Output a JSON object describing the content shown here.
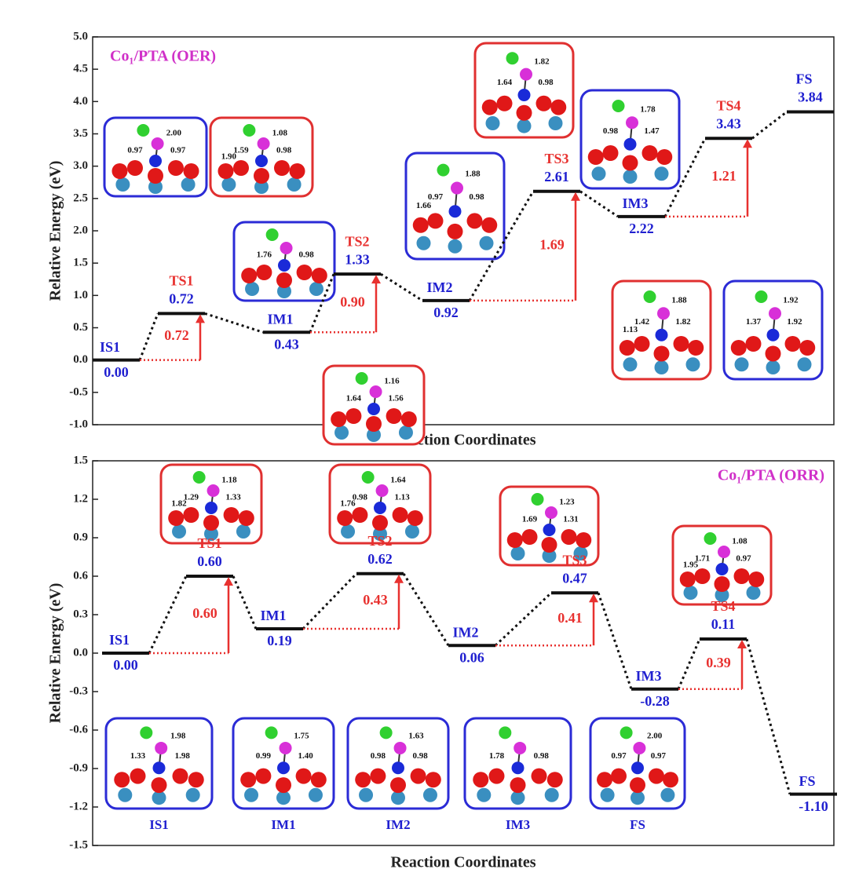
{
  "chart_data": [
    {
      "type": "energy",
      "title": "Co₁/PTA (OER)",
      "ylabel": "Relative Energy (eV)",
      "xlabel": "Reaction Coordinates",
      "categories": [
        "IS1",
        "TS1",
        "IM1",
        "TS2",
        "IM2",
        "TS3",
        "IM3",
        "TS4",
        "FS"
      ],
      "values": [
        0,
        0.72,
        0.43,
        1.33,
        0.92,
        2.61,
        2.22,
        3.43,
        3.84
      ],
      "value_labels": [
        "0.00",
        "0.72",
        "0.43",
        "1.33",
        "0.92",
        "2.61",
        "2.22",
        "3.43",
        "3.84"
      ],
      "barriers": [
        null,
        0.72,
        null,
        0.9,
        null,
        1.69,
        null,
        1.21,
        null
      ],
      "barrier_labels": [
        null,
        "0.72",
        null,
        "0.90",
        null,
        "1.69",
        null,
        "1.21",
        null
      ],
      "ylim": [
        -1,
        5
      ],
      "yticks": [
        {
          "value": -1,
          "label": "-1.0"
        },
        -0.5,
        {
          "value": 0,
          "label": "0.0"
        },
        0.5,
        {
          "value": 1,
          "label": "1.0"
        },
        1.5,
        {
          "value": 2,
          "label": "2.0"
        },
        2.5,
        {
          "value": 3,
          "label": "3.0"
        },
        3.5,
        {
          "value": 4,
          "label": "4.0"
        },
        4.5,
        {
          "value": 5,
          "label": "5.0"
        }
      ],
      "insets": [
        {
          "frame": "#2b2bd6",
          "labels": [
            "0.97",
            "0.97",
            "2.00"
          ]
        },
        {
          "frame": "#e03030",
          "labels": [
            "1.59",
            "0.98",
            "1.08",
            "1.90"
          ]
        },
        {
          "frame": "#2b2bd6",
          "labels": [
            "1.76",
            "0.98"
          ]
        },
        {
          "frame": "#e03030",
          "labels": [
            "1.64",
            "1.56",
            "1.16"
          ]
        },
        {
          "frame": "#2b2bd6",
          "labels": [
            "0.97",
            "0.98",
            "1.88",
            "1.66"
          ]
        },
        {
          "frame": "#e03030",
          "labels": [
            "1.64",
            "0.98",
            "1.82"
          ]
        },
        {
          "frame": "#2b2bd6",
          "labels": [
            "0.98",
            "1.47",
            "1.78"
          ]
        },
        {
          "frame": "#e03030",
          "labels": [
            "1.42",
            "1.82",
            "1.88",
            "1.13"
          ]
        },
        {
          "frame": "#2b2bd6",
          "labels": [
            "1.37",
            "1.92",
            "1.92"
          ]
        }
      ]
    },
    {
      "type": "energy",
      "title": "Co₁/PTA (ORR)",
      "ylabel": "Relative Energy (eV)",
      "xlabel": "Reaction Coordinates",
      "categories": [
        "IS1",
        "TS1",
        "IM1",
        "TS2",
        "IM2",
        "TS3",
        "IM3",
        "TS4",
        "FS"
      ],
      "values": [
        0,
        0.6,
        0.19,
        0.62,
        0.06,
        0.47,
        -0.28,
        0.11,
        -1.1
      ],
      "value_labels": [
        "0.00",
        "0.60",
        "0.19",
        "0.62",
        "0.06",
        "0.47",
        "-0.28",
        "0.11",
        "-1.10"
      ],
      "barriers": [
        null,
        0.6,
        null,
        0.43,
        null,
        0.41,
        null,
        0.39,
        null
      ],
      "barrier_labels": [
        null,
        "0.60",
        null,
        "0.43",
        null,
        "0.41",
        null,
        "0.39",
        null
      ],
      "ylim": [
        -1.5,
        1.5
      ],
      "yticks": [
        -1.5,
        -1.2,
        -0.9,
        -0.6,
        -0.3,
        {
          "value": 0,
          "label": "0.0"
        },
        0.3,
        0.6,
        0.9,
        1.2,
        1.5
      ],
      "insets": [
        {
          "frame": "#e03030",
          "labels": [
            "1.29",
            "1.33",
            "1.18",
            "1.82"
          ]
        },
        {
          "frame": "#e03030",
          "labels": [
            "0.98",
            "1.13",
            "1.64",
            "1.76"
          ]
        },
        {
          "frame": "#e03030",
          "labels": [
            "1.69",
            "1.31",
            "1.23"
          ]
        },
        {
          "frame": "#e03030",
          "labels": [
            "1.71",
            "0.97",
            "1.08",
            "1.95"
          ]
        },
        {
          "frame": "#2b2bd6",
          "labels": [
            "1.33",
            "1.98",
            "1.98"
          ],
          "caption": "IS1"
        },
        {
          "frame": "#2b2bd6",
          "labels": [
            "0.99",
            "1.40",
            "1.75"
          ],
          "caption": "IM1"
        },
        {
          "frame": "#2b2bd6",
          "labels": [
            "0.98",
            "0.98",
            "1.63"
          ],
          "caption": "IM2"
        },
        {
          "frame": "#2b2bd6",
          "labels": [
            "1.78",
            "0.98"
          ],
          "caption": "IM3"
        },
        {
          "frame": "#2b2bd6",
          "labels": [
            "0.97",
            "0.97",
            "2.00"
          ],
          "caption": "FS"
        }
      ]
    }
  ]
}
